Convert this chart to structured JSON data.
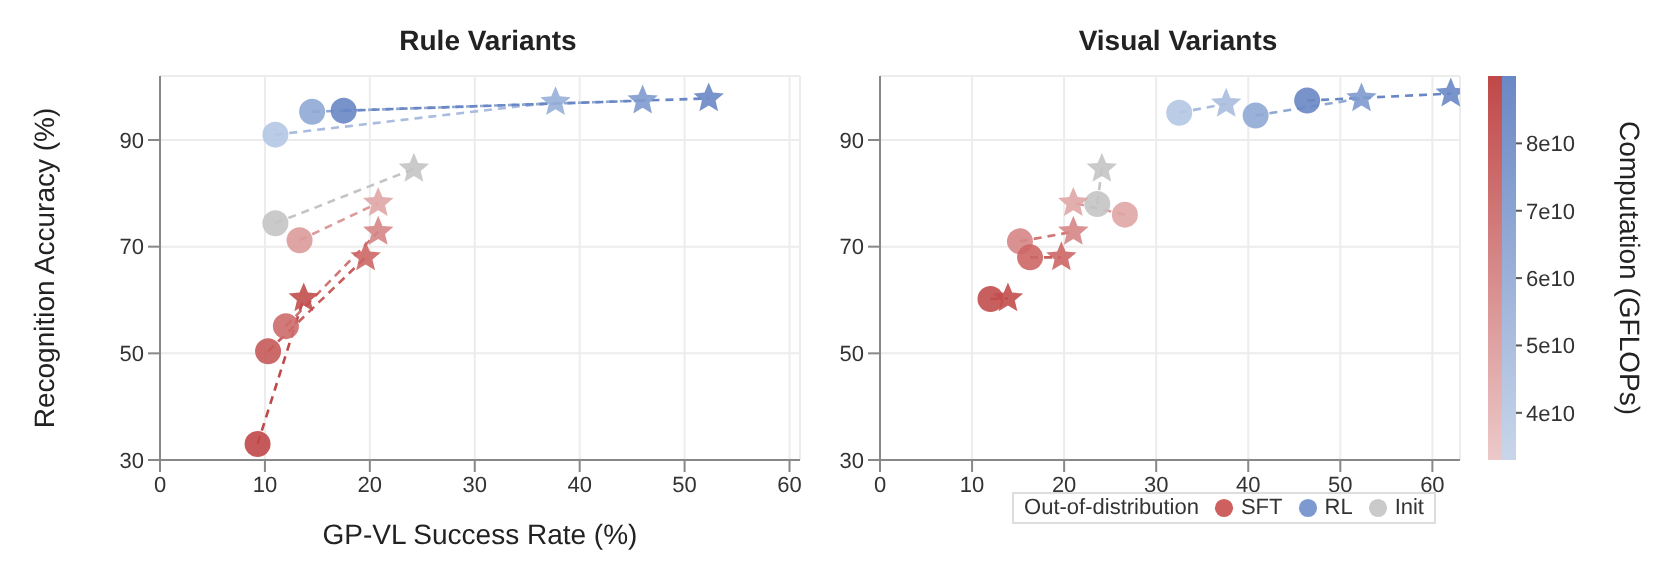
{
  "chart_data": [
    {
      "type": "scatter",
      "title": "Rule Variants",
      "xlabel": "GP-VL Success Rate (%)",
      "ylabel": "Recognition Accuracy (%)",
      "xlim": [
        0,
        61
      ],
      "xticks": [
        0,
        10,
        20,
        30,
        40,
        50,
        60
      ],
      "ylim": [
        30,
        102
      ],
      "yticks": [
        30,
        50,
        70,
        90
      ],
      "grid": true,
      "series": [
        {
          "type": "line",
          "line_style": "dashed",
          "color": "#a9bcdd",
          "x": [
            11.0,
            37.7
          ],
          "values": [
            91.0,
            97.1
          ]
        },
        {
          "type": "line",
          "line_style": "dashed",
          "color": "#8fa8d4",
          "x": [
            14.5,
            46.0
          ],
          "values": [
            95.3,
            97.4
          ]
        },
        {
          "type": "line",
          "line_style": "dashed",
          "color": "#6987c4",
          "x": [
            17.5,
            52.3
          ],
          "values": [
            95.5,
            97.8
          ]
        },
        {
          "type": "line",
          "line_style": "dashed",
          "color": "#c4c4c4",
          "x": [
            11.0,
            24.2
          ],
          "values": [
            74.4,
            84.6
          ]
        },
        {
          "type": "line",
          "line_style": "dashed",
          "color": "#dc9a9a",
          "x": [
            13.3,
            20.8
          ],
          "values": [
            71.2,
            78.2
          ]
        },
        {
          "type": "line",
          "line_style": "dashed",
          "color": "#d07575",
          "x": [
            12.0,
            20.8
          ],
          "values": [
            55.1,
            72.8
          ]
        },
        {
          "type": "line",
          "line_style": "dashed",
          "color": "#c95c5c",
          "x": [
            10.3,
            19.6
          ],
          "values": [
            50.4,
            68.0
          ]
        },
        {
          "type": "line",
          "line_style": "dashed",
          "color": "#c04848",
          "x": [
            9.3,
            13.7
          ],
          "values": [
            33.0,
            60.3
          ]
        },
        {
          "type": "scatter",
          "marker": "circle",
          "x": [
            13.3,
            12.0,
            10.3,
            9.3
          ],
          "values": [
            71.2,
            55.1,
            50.4,
            33.0
          ],
          "colors": [
            "#dc9a9a",
            "#cd6a6a",
            "#c75a5a",
            "#c04848"
          ]
        },
        {
          "type": "scatter",
          "marker": "circle",
          "x": [
            11.0,
            14.5,
            17.5
          ],
          "values": [
            91.0,
            95.3,
            95.5
          ],
          "colors": [
            "#b4c7e3",
            "#8fa8d4",
            "#6987c4"
          ]
        },
        {
          "type": "scatter",
          "marker": "circle",
          "x": [
            11.0
          ],
          "values": [
            74.4
          ],
          "colors": [
            "#c4c4c4"
          ]
        },
        {
          "type": "scatter",
          "marker": "star",
          "x": [
            20.8,
            20.8,
            19.6,
            13.7
          ],
          "values": [
            78.2,
            72.8,
            68.0,
            60.3
          ],
          "colors": [
            "#e0a5a5",
            "#d68585",
            "#cc6666",
            "#c24e4e"
          ]
        },
        {
          "type": "scatter",
          "marker": "star",
          "x": [
            37.7,
            46.0,
            52.3
          ],
          "values": [
            97.1,
            97.4,
            97.8
          ],
          "colors": [
            "#98afd8",
            "#7f9ace",
            "#6a88c5"
          ]
        },
        {
          "type": "scatter",
          "marker": "star",
          "x": [
            24.2
          ],
          "values": [
            84.6
          ],
          "colors": [
            "#c4c4c4"
          ]
        }
      ]
    },
    {
      "type": "scatter",
      "title": "Visual Variants",
      "xlim": [
        0,
        63
      ],
      "xticks": [
        0,
        10,
        20,
        30,
        40,
        50,
        60
      ],
      "ylim": [
        30,
        102
      ],
      "yticks": [
        30,
        50,
        70,
        90
      ],
      "grid": true,
      "legend": "bottom right",
      "legend_title": "Out-of-distribution",
      "clabel": "Computation (GFLOPs)",
      "clim": [
        33000000000,
        90000000000
      ],
      "cticks": [
        {
          "value": 40000000000,
          "label": "4e10"
        },
        {
          "value": 50000000000,
          "label": "5e10"
        },
        {
          "value": 60000000000,
          "label": "6e10"
        },
        {
          "value": 70000000000,
          "label": "7e10"
        },
        {
          "value": 80000000000,
          "label": "8e10"
        }
      ],
      "series": [
        {
          "type": "line",
          "line_style": "dashed",
          "color": "#a9bcdd",
          "x": [
            32.5,
            37.6
          ],
          "values": [
            95.1,
            96.8
          ]
        },
        {
          "type": "line",
          "line_style": "dashed",
          "color": "#8fa8d4",
          "x": [
            40.8,
            52.3
          ],
          "values": [
            94.6,
            97.8
          ]
        },
        {
          "type": "line",
          "line_style": "dashed",
          "color": "#6987c4",
          "x": [
            46.4,
            62.0
          ],
          "values": [
            97.4,
            98.7
          ]
        },
        {
          "type": "line",
          "line_style": "dashed",
          "color": "#c4c4c4",
          "x": [
            23.6,
            24.1
          ],
          "values": [
            78.0,
            84.6
          ]
        },
        {
          "type": "line",
          "line_style": "dashed",
          "color": "#dc9a9a",
          "x": [
            26.6,
            21.0
          ],
          "values": [
            76.0,
            78.2
          ]
        },
        {
          "type": "line",
          "line_style": "dashed",
          "color": "#d07575",
          "x": [
            15.2,
            21.0
          ],
          "values": [
            71.0,
            72.8
          ]
        },
        {
          "type": "line",
          "line_style": "dashed",
          "color": "#c95c5c",
          "x": [
            16.3,
            19.7
          ],
          "values": [
            68.0,
            68.0
          ]
        },
        {
          "type": "line",
          "line_style": "dashed",
          "color": "#c04848",
          "x": [
            12.0,
            13.9
          ],
          "values": [
            60.2,
            60.3
          ]
        },
        {
          "type": "scatter",
          "marker": "circle",
          "name": "SFT",
          "color": "#c94f4f",
          "x": [
            26.6,
            15.2,
            16.3,
            12.0
          ],
          "values": [
            76.0,
            71.0,
            68.0,
            60.2
          ],
          "colors": [
            "#e0a5a5",
            "#d68585",
            "#cc6666",
            "#c24e4e"
          ]
        },
        {
          "type": "scatter",
          "marker": "circle",
          "name": "RL",
          "color": "#6f8fcb",
          "x": [
            32.5,
            40.8,
            46.4
          ],
          "values": [
            95.1,
            94.6,
            97.4
          ],
          "colors": [
            "#b4c7e3",
            "#8fa8d4",
            "#6987c4"
          ]
        },
        {
          "type": "scatter",
          "marker": "circle",
          "name": "Init",
          "color": "#c4c4c4",
          "x": [
            23.6
          ],
          "values": [
            78.0
          ],
          "colors": [
            "#c4c4c4"
          ]
        },
        {
          "type": "scatter",
          "marker": "star",
          "x": [
            21.0,
            21.0,
            19.7,
            13.9
          ],
          "values": [
            78.2,
            72.8,
            68.0,
            60.3
          ],
          "colors": [
            "#e0a5a5",
            "#d68585",
            "#cc6666",
            "#c24e4e"
          ]
        },
        {
          "type": "scatter",
          "marker": "star",
          "x": [
            37.6,
            52.3,
            62.0
          ],
          "values": [
            96.8,
            97.8,
            98.7
          ],
          "colors": [
            "#a9bcdd",
            "#7f9ace",
            "#6a88c5"
          ]
        },
        {
          "type": "scatter",
          "marker": "star",
          "x": [
            24.1
          ],
          "values": [
            84.6
          ],
          "colors": [
            "#c4c4c4"
          ]
        }
      ]
    }
  ]
}
